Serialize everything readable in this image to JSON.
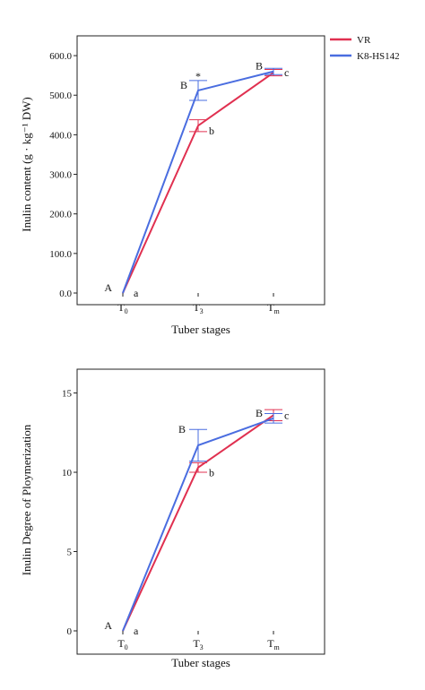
{
  "legend": {
    "items": [
      {
        "label": "VR",
        "color": "#e03050"
      },
      {
        "label": "K8-HS142",
        "color": "#4a6de0"
      }
    ]
  },
  "chart_data": [
    {
      "type": "line",
      "categories": [
        "T0",
        "T3",
        "Tm"
      ],
      "category_labels": [
        {
          "base": "T",
          "sub": "0"
        },
        {
          "base": "T",
          "sub": "3"
        },
        {
          "base": "T",
          "sub": "m"
        }
      ],
      "xlabel": "Tuber stages",
      "ylabel": "Inulin content (g · kg⁻¹ DW)",
      "ylim": [
        0,
        650
      ],
      "yticks": [
        0,
        100,
        200,
        300,
        400,
        500,
        600
      ],
      "ytick_labels": [
        "0.0",
        "100.0",
        "200.0",
        "300.0",
        "400.0",
        "500.0",
        "600.0"
      ],
      "series": [
        {
          "name": "VR",
          "color": "#e03050",
          "values": [
            0,
            423,
            557
          ],
          "errors": [
            0,
            15,
            8
          ]
        },
        {
          "name": "K8-HS142",
          "color": "#4a6de0",
          "values": [
            0,
            512,
            560
          ],
          "errors": [
            0,
            25,
            8
          ]
        }
      ],
      "annotations": [
        {
          "text": "A",
          "category": 0,
          "series": 1,
          "pos": "left"
        },
        {
          "text": "a",
          "category": 0,
          "series": 0,
          "pos": "right"
        },
        {
          "text": "B",
          "category": 1,
          "series": 1,
          "pos": "left"
        },
        {
          "text": "*",
          "category": 1,
          "series": 1,
          "pos": "top"
        },
        {
          "text": "b",
          "category": 1,
          "series": 0,
          "pos": "right-low"
        },
        {
          "text": "B",
          "category": 2,
          "series": 1,
          "pos": "left"
        },
        {
          "text": "c",
          "category": 2,
          "series": 0,
          "pos": "right"
        }
      ]
    },
    {
      "type": "line",
      "categories": [
        "T0",
        "T3",
        "Tm"
      ],
      "category_labels": [
        {
          "base": "T",
          "sub": "0"
        },
        {
          "base": "T",
          "sub": "3"
        },
        {
          "base": "T",
          "sub": "m"
        }
      ],
      "xlabel": "Tuber stages",
      "ylabel": "Inulin Degree of Ploymerization",
      "ylim": [
        0,
        16.5
      ],
      "yticks": [
        0,
        5,
        10,
        15
      ],
      "ytick_labels": [
        "0",
        "5",
        "10",
        "15"
      ],
      "series": [
        {
          "name": "VR",
          "color": "#e03050",
          "values": [
            0,
            10.3,
            13.6
          ],
          "errors": [
            0,
            0.3,
            0.35
          ]
        },
        {
          "name": "K8-HS142",
          "color": "#4a6de0",
          "values": [
            0,
            11.7,
            13.4
          ],
          "errors": [
            0,
            1.0,
            0.3
          ]
        }
      ],
      "annotations": [
        {
          "text": "A",
          "category": 0,
          "series": 1,
          "pos": "left"
        },
        {
          "text": "a",
          "category": 0,
          "series": 0,
          "pos": "right"
        },
        {
          "text": "B",
          "category": 1,
          "series": 1,
          "pos": "left-high"
        },
        {
          "text": "b",
          "category": 1,
          "series": 0,
          "pos": "right-low"
        },
        {
          "text": "B",
          "category": 2,
          "series": 1,
          "pos": "left"
        },
        {
          "text": "c",
          "category": 2,
          "series": 0,
          "pos": "right"
        }
      ]
    }
  ]
}
